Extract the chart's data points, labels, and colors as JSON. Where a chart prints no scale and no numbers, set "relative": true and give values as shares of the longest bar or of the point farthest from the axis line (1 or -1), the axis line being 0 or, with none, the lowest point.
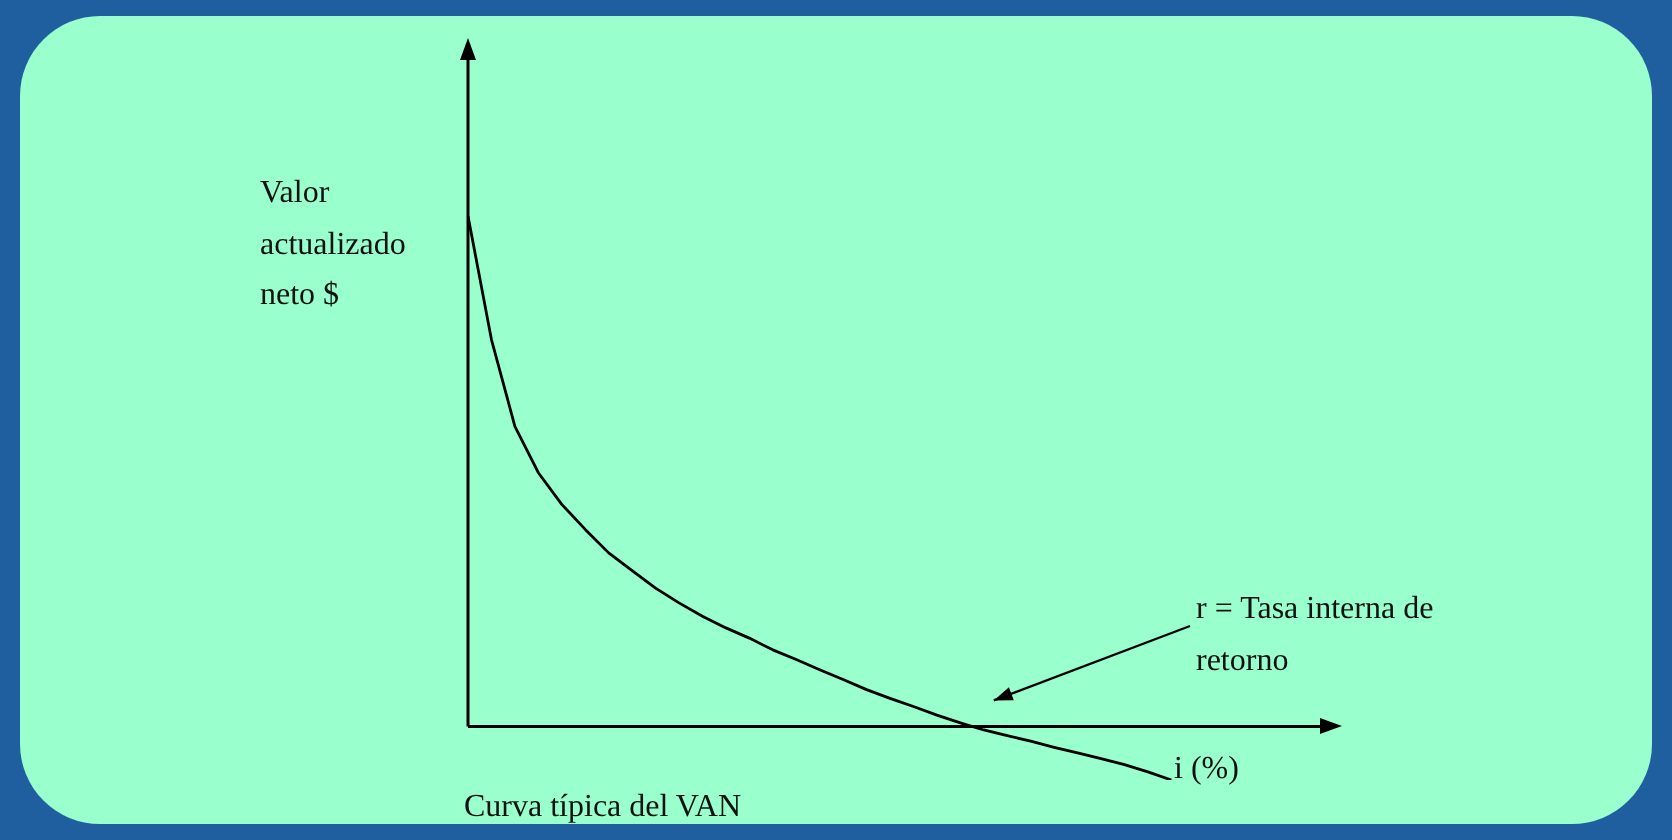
{
  "chart_data": {
    "type": "line",
    "relative": true,
    "title": "Curva típica del VAN",
    "ylabel": "Valor actualizado neto $",
    "xlabel": "i (%)",
    "categories": [
      null,
      null,
      null,
      null,
      null,
      null,
      null,
      null,
      null,
      null,
      null,
      null,
      null,
      null,
      null,
      null,
      null,
      null,
      null,
      null,
      null,
      null,
      null,
      null,
      null,
      null,
      null,
      null,
      null,
      null,
      null,
      null,
      null,
      null,
      null,
      null,
      null
    ],
    "series": [
      {
        "color": "#000000",
        "values": [
          1.0,
          0.758,
          0.588,
          0.497,
          0.435,
          0.386,
          0.34,
          0.305,
          0.271,
          0.242,
          0.216,
          0.193,
          0.173,
          0.15,
          0.131,
          0.111,
          0.092,
          0.072,
          0.055,
          0.039,
          0.022,
          0.007,
          -0.007,
          -0.018,
          -0.029,
          -0.041,
          -0.052,
          -0.063,
          -0.075,
          -0.089,
          -0.105,
          null,
          null,
          null,
          null,
          null,
          null
        ]
      }
    ],
    "annotations": [
      "r = Tasa interna de retorno"
    ],
    "marker": "none",
    "line_style": "solid"
  }
}
